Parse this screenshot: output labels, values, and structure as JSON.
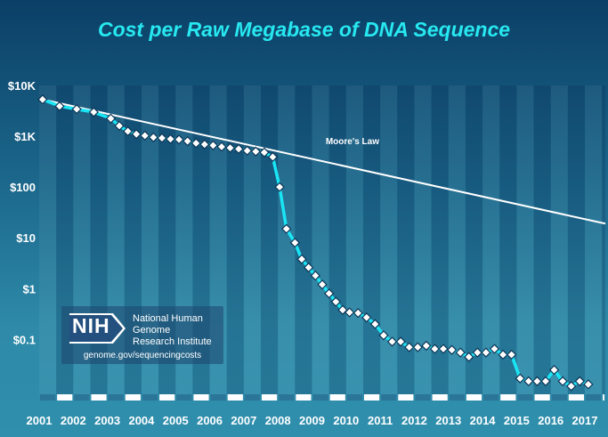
{
  "title": "Cost per Raw Megabase of DNA Sequence",
  "colors": {
    "series": "#19e6f5",
    "moore": "#ffffff",
    "title": "#27e8f0"
  },
  "annotation": "Moore's Law",
  "logo": {
    "mark": "NIH",
    "name_line1": "National Human Genome",
    "name_line2": "Research Institute",
    "url": "genome.gov/sequencingcosts"
  },
  "chart_data": {
    "type": "line",
    "title": "Cost per Raw Megabase of DNA Sequence",
    "xlabel": "",
    "ylabel": "",
    "y_scale": "log",
    "y_ticks": [
      {
        "v": 10000,
        "label": "$10K"
      },
      {
        "v": 1000,
        "label": "$1K"
      },
      {
        "v": 100,
        "label": "$100"
      },
      {
        "v": 10,
        "label": "$10"
      },
      {
        "v": 1,
        "label": "$1"
      },
      {
        "v": 0.1,
        "label": "$0.1"
      }
    ],
    "ylim": [
      0.0083,
      10000
    ],
    "xlim": [
      2001.0,
      2017.6
    ],
    "x_ticks": [
      "2001",
      "2002",
      "2003",
      "2004",
      "2005",
      "2006",
      "2007",
      "2008",
      "2009",
      "2010",
      "2011",
      "2012",
      "2013",
      "2014",
      "2015",
      "2016",
      "2017"
    ],
    "grid": "vertical bands",
    "series": [
      {
        "name": "",
        "style": "line-with-diamond-markers",
        "points": [
          [
            2001.1,
            5292
          ],
          [
            2001.6,
            3898
          ],
          [
            2002.1,
            3413
          ],
          [
            2002.6,
            2986
          ],
          [
            2003.1,
            2230
          ],
          [
            2003.35,
            1600
          ],
          [
            2003.6,
            1250
          ],
          [
            2003.85,
            1100
          ],
          [
            2004.1,
            1028
          ],
          [
            2004.35,
            950
          ],
          [
            2004.6,
            920
          ],
          [
            2004.85,
            880
          ],
          [
            2005.1,
            860
          ],
          [
            2005.35,
            800
          ],
          [
            2005.6,
            730
          ],
          [
            2005.85,
            690
          ],
          [
            2006.1,
            660
          ],
          [
            2006.35,
            620
          ],
          [
            2006.6,
            590
          ],
          [
            2006.85,
            560
          ],
          [
            2007.1,
            520
          ],
          [
            2007.35,
            500
          ],
          [
            2007.6,
            480
          ],
          [
            2007.85,
            390
          ],
          [
            2008.05,
            100
          ],
          [
            2008.25,
            15
          ],
          [
            2008.5,
            8
          ],
          [
            2008.7,
            3.8
          ],
          [
            2008.9,
            2.6
          ],
          [
            2009.1,
            1.8
          ],
          [
            2009.3,
            1.2
          ],
          [
            2009.5,
            0.8
          ],
          [
            2009.7,
            0.55
          ],
          [
            2009.9,
            0.38
          ],
          [
            2010.1,
            0.34
          ],
          [
            2010.35,
            0.33
          ],
          [
            2010.6,
            0.27
          ],
          [
            2010.85,
            0.2
          ],
          [
            2011.1,
            0.12
          ],
          [
            2011.35,
            0.09
          ],
          [
            2011.6,
            0.09
          ],
          [
            2011.85,
            0.07
          ],
          [
            2012.1,
            0.07
          ],
          [
            2012.35,
            0.075
          ],
          [
            2012.6,
            0.065
          ],
          [
            2012.85,
            0.065
          ],
          [
            2013.1,
            0.062
          ],
          [
            2013.35,
            0.055
          ],
          [
            2013.6,
            0.045
          ],
          [
            2013.85,
            0.055
          ],
          [
            2014.1,
            0.055
          ],
          [
            2014.35,
            0.065
          ],
          [
            2014.6,
            0.05
          ],
          [
            2014.85,
            0.05
          ],
          [
            2015.1,
            0.017
          ],
          [
            2015.35,
            0.015
          ],
          [
            2015.6,
            0.015
          ],
          [
            2015.85,
            0.015
          ],
          [
            2016.1,
            0.025
          ],
          [
            2016.35,
            0.015
          ],
          [
            2016.6,
            0.012
          ],
          [
            2016.85,
            0.015
          ],
          [
            2017.1,
            0.013
          ]
        ]
      },
      {
        "name": "Moore's Law",
        "style": "line",
        "points": [
          [
            2001.1,
            5292
          ],
          [
            2017.6,
            19
          ]
        ]
      }
    ]
  }
}
